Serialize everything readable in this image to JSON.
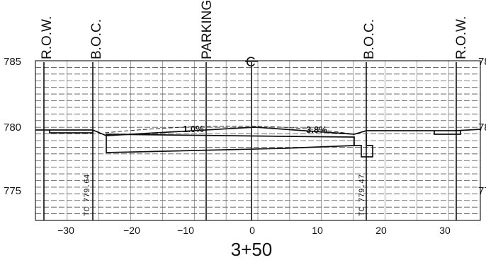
{
  "station": "3+50",
  "elevation_labels": [
    "785",
    "780",
    "775"
  ],
  "elevation_labels_right": [
    "78",
    "78",
    "77"
  ],
  "offset_labels": [
    "−30",
    "−20",
    "−10",
    "0",
    "10",
    "20",
    "30"
  ],
  "reference_lines": {
    "row_left": "R.O.W.",
    "boc_left": "B.O.C.",
    "parking": "PARKING",
    "centerline": "C",
    "boc_right": "B.O.C.",
    "row_right": "R.O.W."
  },
  "curb_tags": {
    "left": "TC 779.64",
    "right": "TC 779.47"
  },
  "slopes": {
    "left": "1.0%",
    "right": "3.8%"
  },
  "grid": {
    "offset_range": [
      -35,
      35
    ],
    "elevation_range": [
      772.5,
      786
    ]
  }
}
